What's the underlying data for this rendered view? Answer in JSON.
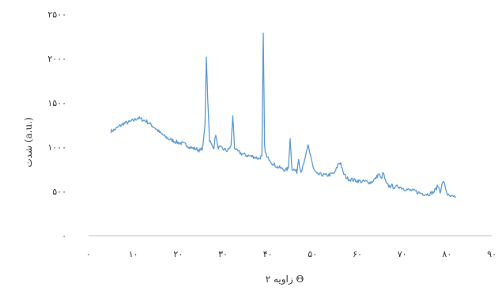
{
  "chart_data": {
    "type": "line",
    "title": "",
    "xlabel": "زاویه ۲ Θ",
    "ylabel": "شدت (a.u.)",
    "xlim": [
      0,
      90
    ],
    "ylim": [
      0,
      2500
    ],
    "x_ticks": [
      0,
      10,
      20,
      30,
      40,
      50,
      60,
      70,
      80,
      90
    ],
    "x_tick_labels": [
      "۰",
      "۱۰",
      "۲۰",
      "۳۰",
      "۴۰",
      "۵۰",
      "۶۰",
      "۷۰",
      "۸۰",
      "۹۰"
    ],
    "y_ticks": [
      0,
      500,
      1000,
      1500,
      2000,
      2500
    ],
    "y_tick_labels": [
      "۰",
      "۵۰۰",
      "۱۰۰۰",
      "۱۵۰۰",
      "۲۰۰۰",
      "۲۵۰۰"
    ],
    "grid": false,
    "legend": "none",
    "series": [
      {
        "color": "#5b9bd5",
        "x": [
          5,
          6,
          7,
          8,
          9,
          10,
          11,
          12,
          13,
          14,
          15,
          16,
          17,
          18,
          19,
          20,
          21,
          22,
          23,
          24,
          25,
          25.5,
          26,
          26.3,
          26.6,
          27,
          27.5,
          28,
          28.4,
          28.8,
          29.5,
          30,
          31,
          31.8,
          32.2,
          32.6,
          33,
          34,
          35,
          36,
          37,
          38,
          38.7,
          39,
          39.3,
          39.8,
          40.5,
          41,
          42,
          43,
          44,
          44.6,
          45,
          45.4,
          46,
          46.5,
          46.9,
          47.4,
          48,
          49,
          49.7,
          50.2,
          51,
          52,
          53,
          54,
          55,
          55.8,
          56.3,
          56.8,
          57.5,
          58,
          59,
          60,
          61,
          62,
          63,
          64,
          64.8,
          65.3,
          65.8,
          66.4,
          67,
          67.8,
          68.5,
          69,
          70,
          71,
          72,
          73,
          74,
          75,
          76,
          77,
          78,
          78.5,
          79.2,
          80,
          80.5,
          81,
          81.5,
          82
        ],
        "y": [
          1180,
          1200,
          1240,
          1270,
          1280,
          1300,
          1330,
          1310,
          1290,
          1250,
          1210,
          1160,
          1120,
          1090,
          1070,
          1050,
          1040,
          1020,
          990,
          980,
          960,
          1000,
          1250,
          2020,
          1550,
          1080,
          1020,
          1000,
          1150,
          1000,
          990,
          980,
          960,
          1010,
          1350,
          1000,
          960,
          930,
          910,
          900,
          890,
          870,
          900,
          2280,
          1000,
          880,
          860,
          820,
          780,
          760,
          740,
          760,
          1100,
          760,
          740,
          720,
          870,
          720,
          800,
          1020,
          880,
          750,
          690,
          690,
          680,
          690,
          710,
          820,
          820,
          710,
          660,
          640,
          630,
          620,
          610,
          610,
          600,
          640,
          700,
          640,
          710,
          590,
          560,
          560,
          540,
          560,
          540,
          520,
          510,
          500,
          480,
          470,
          470,
          490,
          560,
          500,
          620,
          480,
          440,
          440,
          430,
          430
        ]
      }
    ]
  }
}
